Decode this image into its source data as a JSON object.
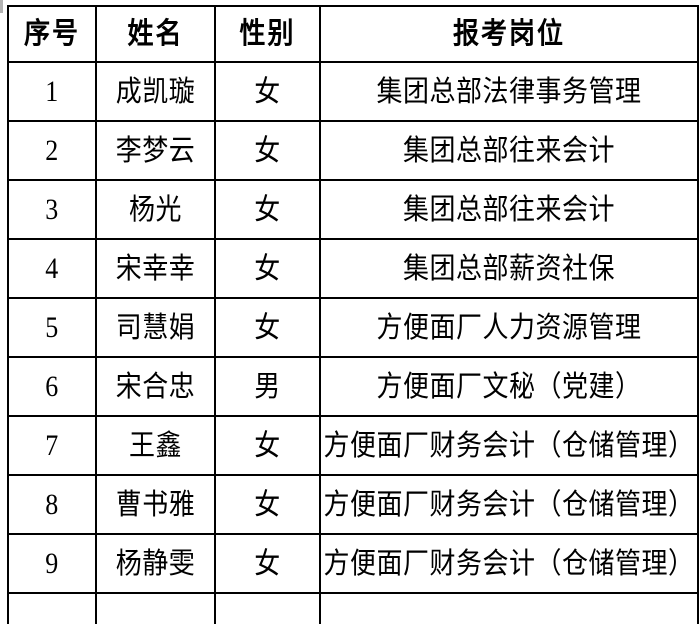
{
  "table": {
    "columns": [
      {
        "key": "index",
        "label": "序号"
      },
      {
        "key": "name",
        "label": "姓名"
      },
      {
        "key": "gender",
        "label": "性别"
      },
      {
        "key": "position",
        "label": "报考岗位"
      }
    ],
    "rows": [
      {
        "index": "1",
        "name": "成凯璇",
        "gender": "女",
        "position": "集团总部法律事务管理"
      },
      {
        "index": "2",
        "name": "李梦云",
        "gender": "女",
        "position": "集团总部往来会计"
      },
      {
        "index": "3",
        "name": "杨光",
        "gender": "女",
        "position": "集团总部往来会计"
      },
      {
        "index": "4",
        "name": "宋幸幸",
        "gender": "女",
        "position": "集团总部薪资社保"
      },
      {
        "index": "5",
        "name": "司慧娟",
        "gender": "女",
        "position": "方便面厂人力资源管理"
      },
      {
        "index": "6",
        "name": "宋合忠",
        "gender": "男",
        "position": "方便面厂文秘（党建）"
      },
      {
        "index": "7",
        "name": "王鑫",
        "gender": "女",
        "position": "方便面厂财务会计（仓储管理）"
      },
      {
        "index": "8",
        "name": "曹书雅",
        "gender": "女",
        "position": "方便面厂财务会计（仓储管理）"
      },
      {
        "index": "9",
        "name": "杨静雯",
        "gender": "女",
        "position": "方便面厂财务会计（仓储管理）"
      }
    ]
  },
  "colors": {
    "border": "#000000",
    "text": "#000000",
    "background": "#ffffff",
    "scan_artifact": "#b3b3b3"
  }
}
